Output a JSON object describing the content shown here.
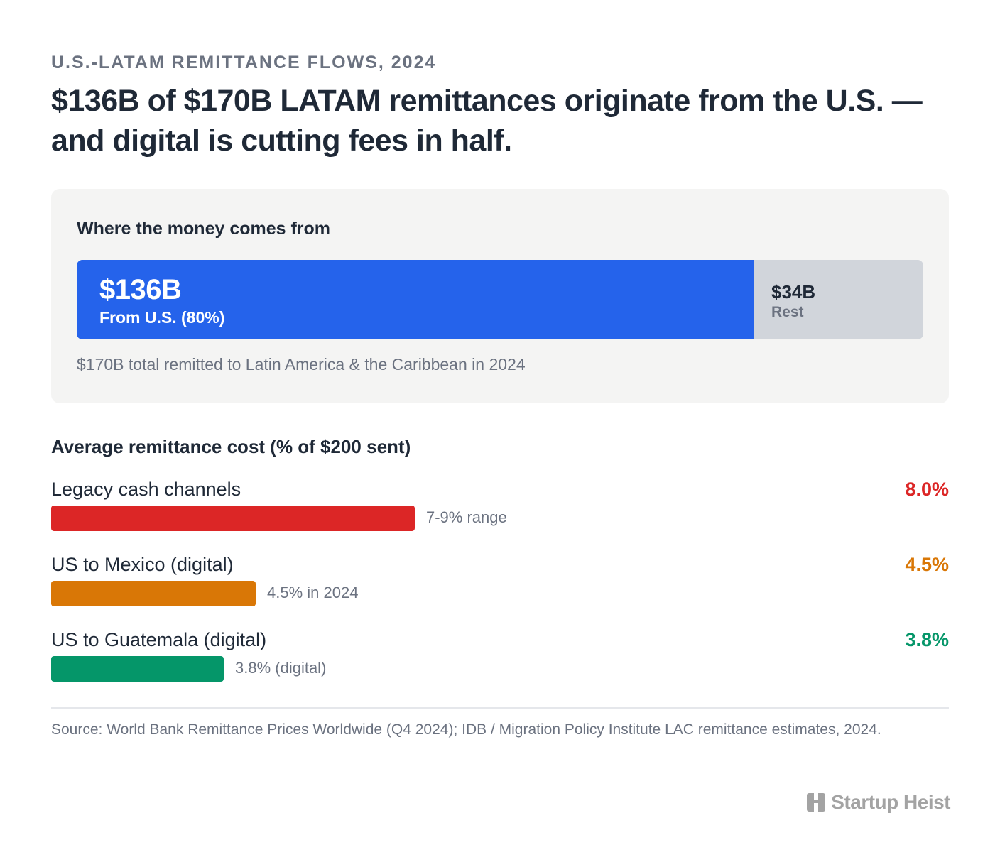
{
  "eyebrow": "U.S.-LATAM REMITTANCE FLOWS, 2024",
  "headline": "$136B of $170B LATAM remittances originate from the U.S. — and digital is cutting fees in half.",
  "origin_panel": {
    "title": "Where the money comes from",
    "us_value": "$136B",
    "us_label": "From U.S. (80%)",
    "rest_value": "$34B",
    "rest_label": "Rest",
    "note": "$170B total remitted to Latin America & the Caribbean in 2024"
  },
  "cost_section": {
    "title": "Average remittance cost (% of $200 sent)"
  },
  "chart_data": [
    {
      "type": "bar",
      "orientation": "horizontal-stacked",
      "title": "Where the money comes from",
      "unit": "USD billions",
      "total": 170,
      "segments": [
        {
          "name": "From U.S. (80%)",
          "value": 136,
          "display": "$136B",
          "color": "#2563eb"
        },
        {
          "name": "Rest",
          "value": 34,
          "display": "$34B",
          "color": "#d1d5db"
        }
      ]
    },
    {
      "type": "bar",
      "orientation": "horizontal",
      "title": "Average remittance cost (% of $200 sent)",
      "unit": "%",
      "xlim": [
        0,
        8.0
      ],
      "rows": [
        {
          "name": "Legacy cash channels",
          "value": 8.0,
          "display": "8.0%",
          "note": "7-9% range",
          "color": "#dc2626"
        },
        {
          "name": "US to Mexico (digital)",
          "value": 4.5,
          "display": "4.5%",
          "note": "4.5% in 2024",
          "color": "#d97706"
        },
        {
          "name": "US to Guatemala (digital)",
          "value": 3.8,
          "display": "3.8%",
          "note": "3.8% (digital)",
          "color": "#059669"
        }
      ]
    }
  ],
  "source": "Source: World Bank Remittance Prices Worldwide (Q4 2024); IDB / Migration Policy Institute LAC remittance estimates, 2024.",
  "brand": {
    "name": "Startup Heist",
    "icon": "building-icon"
  }
}
